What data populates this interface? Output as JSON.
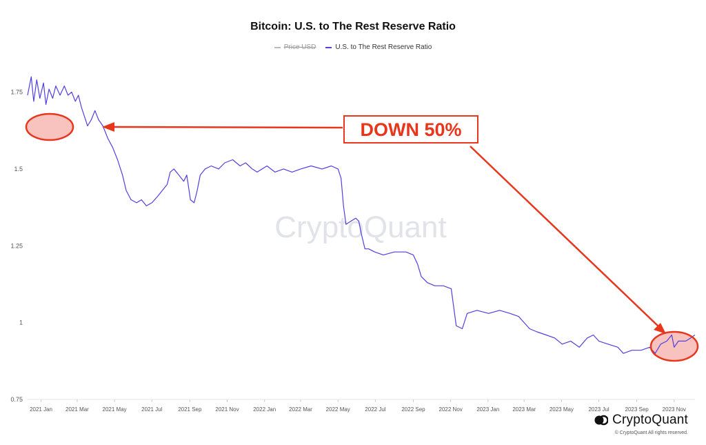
{
  "chart_data": {
    "type": "line",
    "title": "Bitcoin: U.S. to The Rest Reserve Ratio",
    "legend": [
      {
        "name": "Price USD",
        "visible": false,
        "color": "#bbbbbb"
      },
      {
        "name": "U.S. to The Rest Reserve Ratio",
        "visible": true,
        "color": "#4f3fe0"
      }
    ],
    "legend_placement": "top-center",
    "grid": false,
    "x_ticks": [
      "2021 Jan",
      "2021 Mar",
      "2021 May",
      "2021 Jul",
      "2021 Sep",
      "2021 Nov",
      "2022 Jan",
      "2022 Mar",
      "2022 May",
      "2022 Jul",
      "2022 Sep",
      "2022 Nov",
      "2023 Jan",
      "2023 Mar",
      "2023 May",
      "2023 Jul",
      "2023 Sep",
      "2023 Nov"
    ],
    "y_ticks": [
      "0.75",
      "1",
      "1.25",
      "1.5",
      "1.75"
    ],
    "ylim": [
      0.75,
      1.85
    ],
    "xlim": [
      "2020-12-10",
      "2023-12-05"
    ],
    "series": [
      {
        "name": "U.S. to The Rest Reserve Ratio",
        "color": "#4f3fe0",
        "points": [
          [
            "2020-12-10",
            1.74
          ],
          [
            "2020-12-16",
            1.8
          ],
          [
            "2020-12-20",
            1.72
          ],
          [
            "2020-12-25",
            1.79
          ],
          [
            "2020-12-30",
            1.73
          ],
          [
            "2021-01-05",
            1.78
          ],
          [
            "2021-01-09",
            1.71
          ],
          [
            "2021-01-14",
            1.76
          ],
          [
            "2021-01-20",
            1.73
          ],
          [
            "2021-01-25",
            1.77
          ],
          [
            "2021-02-01",
            1.74
          ],
          [
            "2021-02-08",
            1.77
          ],
          [
            "2021-02-14",
            1.74
          ],
          [
            "2021-02-20",
            1.75
          ],
          [
            "2021-02-26",
            1.72
          ],
          [
            "2021-03-03",
            1.74
          ],
          [
            "2021-03-08",
            1.7
          ],
          [
            "2021-03-13",
            1.67
          ],
          [
            "2021-03-18",
            1.64
          ],
          [
            "2021-03-24",
            1.66
          ],
          [
            "2021-03-30",
            1.69
          ],
          [
            "2021-04-05",
            1.66
          ],
          [
            "2021-04-12",
            1.64
          ],
          [
            "2021-04-20",
            1.6
          ],
          [
            "2021-04-28",
            1.57
          ],
          [
            "2021-05-06",
            1.53
          ],
          [
            "2021-05-14",
            1.48
          ],
          [
            "2021-05-20",
            1.43
          ],
          [
            "2021-05-28",
            1.4
          ],
          [
            "2021-06-06",
            1.39
          ],
          [
            "2021-06-14",
            1.4
          ],
          [
            "2021-06-22",
            1.38
          ],
          [
            "2021-07-01",
            1.39
          ],
          [
            "2021-07-10",
            1.41
          ],
          [
            "2021-07-18",
            1.43
          ],
          [
            "2021-07-26",
            1.45
          ],
          [
            "2021-07-31",
            1.49
          ],
          [
            "2021-08-06",
            1.5
          ],
          [
            "2021-08-14",
            1.48
          ],
          [
            "2021-08-22",
            1.46
          ],
          [
            "2021-08-27",
            1.48
          ],
          [
            "2021-09-02",
            1.4
          ],
          [
            "2021-09-08",
            1.39
          ],
          [
            "2021-09-13",
            1.43
          ],
          [
            "2021-09-18",
            1.48
          ],
          [
            "2021-09-26",
            1.5
          ],
          [
            "2021-10-06",
            1.51
          ],
          [
            "2021-10-18",
            1.5
          ],
          [
            "2021-10-28",
            1.52
          ],
          [
            "2021-11-10",
            1.53
          ],
          [
            "2021-11-22",
            1.51
          ],
          [
            "2021-12-01",
            1.52
          ],
          [
            "2021-12-12",
            1.5
          ],
          [
            "2021-12-20",
            1.49
          ],
          [
            "2022-01-05",
            1.51
          ],
          [
            "2022-01-18",
            1.49
          ],
          [
            "2022-02-01",
            1.5
          ],
          [
            "2022-02-15",
            1.49
          ],
          [
            "2022-03-01",
            1.5
          ],
          [
            "2022-03-18",
            1.51
          ],
          [
            "2022-04-05",
            1.5
          ],
          [
            "2022-04-20",
            1.51
          ],
          [
            "2022-05-01",
            1.5
          ],
          [
            "2022-05-06",
            1.47
          ],
          [
            "2022-05-10",
            1.38
          ],
          [
            "2022-05-14",
            1.32
          ],
          [
            "2022-05-22",
            1.33
          ],
          [
            "2022-05-30",
            1.34
          ],
          [
            "2022-06-04",
            1.33
          ],
          [
            "2022-06-08",
            1.29
          ],
          [
            "2022-06-14",
            1.24
          ],
          [
            "2022-06-20",
            1.24
          ],
          [
            "2022-06-30",
            1.23
          ],
          [
            "2022-07-14",
            1.22
          ],
          [
            "2022-08-01",
            1.23
          ],
          [
            "2022-08-20",
            1.23
          ],
          [
            "2022-09-01",
            1.22
          ],
          [
            "2022-09-08",
            1.19
          ],
          [
            "2022-09-14",
            1.15
          ],
          [
            "2022-09-24",
            1.13
          ],
          [
            "2022-10-06",
            1.12
          ],
          [
            "2022-10-20",
            1.12
          ],
          [
            "2022-11-02",
            1.11
          ],
          [
            "2022-11-06",
            1.05
          ],
          [
            "2022-11-10",
            0.99
          ],
          [
            "2022-11-20",
            0.98
          ],
          [
            "2022-11-28",
            1.03
          ],
          [
            "2022-12-14",
            1.04
          ],
          [
            "2023-01-02",
            1.03
          ],
          [
            "2023-01-20",
            1.04
          ],
          [
            "2023-02-06",
            1.03
          ],
          [
            "2023-02-20",
            1.02
          ],
          [
            "2023-03-01",
            1.0
          ],
          [
            "2023-03-10",
            0.98
          ],
          [
            "2023-03-22",
            0.97
          ],
          [
            "2023-04-06",
            0.96
          ],
          [
            "2023-04-20",
            0.95
          ],
          [
            "2023-05-02",
            0.93
          ],
          [
            "2023-05-16",
            0.94
          ],
          [
            "2023-05-30",
            0.92
          ],
          [
            "2023-06-12",
            0.95
          ],
          [
            "2023-06-22",
            0.96
          ],
          [
            "2023-07-01",
            0.94
          ],
          [
            "2023-07-16",
            0.93
          ],
          [
            "2023-08-01",
            0.92
          ],
          [
            "2023-08-10",
            0.9
          ],
          [
            "2023-08-24",
            0.91
          ],
          [
            "2023-09-08",
            0.91
          ],
          [
            "2023-09-22",
            0.92
          ],
          [
            "2023-10-01",
            0.9
          ],
          [
            "2023-10-10",
            0.93
          ],
          [
            "2023-10-20",
            0.94
          ],
          [
            "2023-10-28",
            0.96
          ],
          [
            "2023-11-01",
            0.92
          ],
          [
            "2023-11-08",
            0.94
          ],
          [
            "2023-11-20",
            0.94
          ],
          [
            "2023-11-28",
            0.95
          ],
          [
            "2023-12-05",
            0.96
          ]
        ]
      }
    ],
    "annotations": {
      "callout_text": "DOWN 50%",
      "colors": {
        "arrow": "#e8361c",
        "ellipse_fill": "#f6b3ae",
        "text": "#e8361c"
      }
    }
  },
  "watermark": "CryptoQuant",
  "brand": {
    "name": "CryptoQuant",
    "copyright": "© CryptoQuant All rights reserved."
  }
}
